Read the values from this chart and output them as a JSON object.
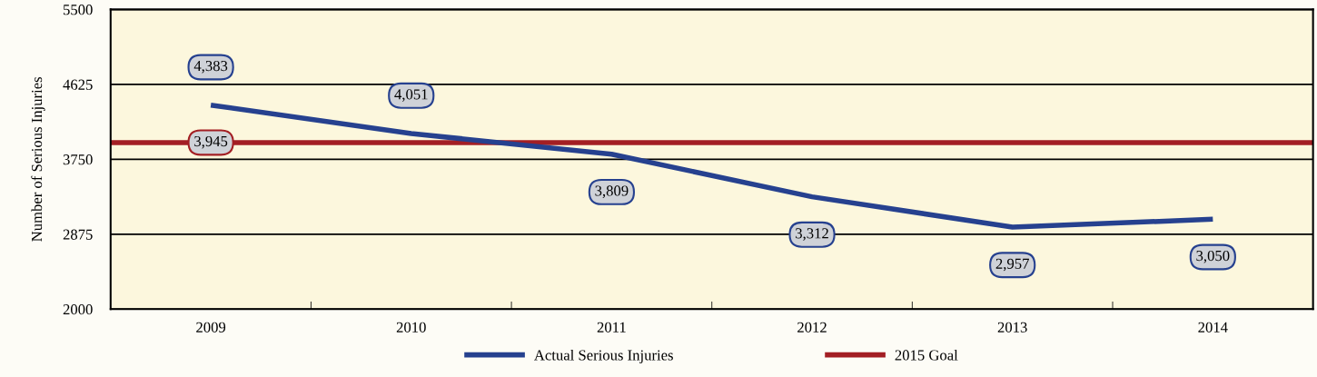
{
  "chart_data": {
    "type": "line",
    "ylabel": "Number of Serious Injuries",
    "categories": [
      "2009",
      "2010",
      "2011",
      "2012",
      "2013",
      "2014"
    ],
    "series": [
      {
        "name": "Actual Serious Injuries",
        "color": "#26418f",
        "values": [
          4383,
          4051,
          3809,
          3312,
          2957,
          3050
        ],
        "value_labels": [
          "4,383",
          "4,051",
          "3,809",
          "3,312",
          "2,957",
          "3,050"
        ]
      }
    ],
    "ref_lines": [
      {
        "axis": "y",
        "value": 3945,
        "label": "2015 Goal",
        "color": "#a31f24"
      }
    ],
    "annotations": [
      {
        "text": "3,945",
        "x": "2009",
        "y": 3945
      }
    ],
    "ylim": [
      2000,
      5500
    ],
    "yticks": [
      2000,
      2875,
      3750,
      4625,
      5500
    ],
    "grid": "y",
    "legend": "bottom",
    "marker": "none",
    "line_style": "solid"
  }
}
